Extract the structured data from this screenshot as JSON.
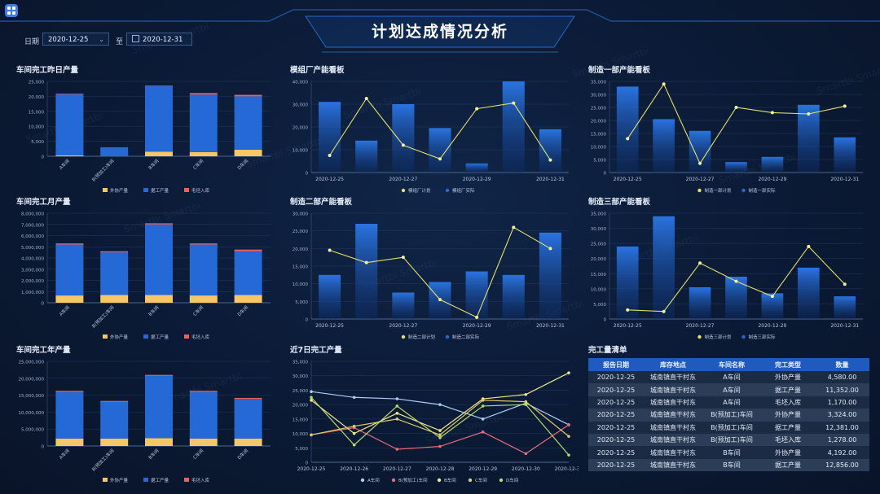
{
  "header": {
    "title": "计划达成情况分析",
    "date_label": "日期",
    "start_date": "2020-12-25",
    "to_label": "至",
    "end_date": "2020-12-31"
  },
  "watermark": "Smartbi Smartbi",
  "colors": {
    "blue": "#2469d6",
    "yellow": "#f6c667",
    "red": "#e8635a",
    "line_yellow": "#e4e06a",
    "table_header": "#1f5bbf"
  },
  "chart_data": [
    {
      "id": "daily",
      "type": "bar",
      "stacked": true,
      "title": "车间完工昨日产量",
      "categories": [
        "A车间",
        "B(预加工)车间",
        "B车间",
        "C车间",
        "D车间"
      ],
      "series": [
        {
          "name": "外协产量",
          "values": [
            300,
            0,
            1500,
            1400,
            2200
          ]
        },
        {
          "name": "据工产量",
          "values": [
            20400,
            3000,
            22000,
            19200,
            17800
          ]
        },
        {
          "name": "毛坯入库",
          "values": [
            200,
            0,
            100,
            500,
            500
          ]
        }
      ],
      "ylim": [
        0,
        25000
      ],
      "yticks": [
        "0",
        "5,000",
        "10,000",
        "15,000",
        "20,000",
        "25,000"
      ],
      "legend": "bottom"
    },
    {
      "id": "monthly",
      "type": "bar",
      "stacked": true,
      "title": "车间完工月产量",
      "categories": [
        "A车间",
        "B(预加工)车间",
        "B车间",
        "C车间",
        "D车间"
      ],
      "series": [
        {
          "name": "外协产量",
          "values": [
            650000,
            700000,
            700000,
            650000,
            700000
          ]
        },
        {
          "name": "据工产量",
          "values": [
            4550000,
            3800000,
            6300000,
            4550000,
            3900000
          ]
        },
        {
          "name": "毛坯入库",
          "values": [
            100000,
            100000,
            100000,
            100000,
            150000
          ]
        }
      ],
      "ylim": [
        0,
        8000000
      ],
      "yticks": [
        "0",
        "1,000,000",
        "2,000,000",
        "3,000,000",
        "4,000,000",
        "5,000,000",
        "6,000,000",
        "7,000,000",
        "8,000,000"
      ],
      "legend": "bottom"
    },
    {
      "id": "yearly",
      "type": "bar",
      "stacked": true,
      "title": "车间完工年产量",
      "categories": [
        "A车间",
        "B(预加工)车间",
        "B车间",
        "C车间",
        "D车间"
      ],
      "series": [
        {
          "name": "外协产量",
          "values": [
            2200000,
            2200000,
            2300000,
            2200000,
            2200000
          ]
        },
        {
          "name": "据工产量",
          "values": [
            13800000,
            10800000,
            18400000,
            13800000,
            11700000
          ]
        },
        {
          "name": "毛坯入库",
          "values": [
            300000,
            300000,
            300000,
            300000,
            300000
          ]
        }
      ],
      "ylim": [
        0,
        25000000
      ],
      "yticks": [
        "0",
        "5,000,000",
        "10,000,000",
        "15,000,000",
        "20,000,000",
        "25,000,000"
      ],
      "legend": "bottom"
    },
    {
      "id": "mold",
      "type": "bar+line",
      "title": "模组厂产能看板",
      "x": [
        "2020-12-25",
        "2020-12-26",
        "2020-12-27",
        "2020-12-28",
        "2020-12-29",
        "2020-12-30",
        "2020-12-31"
      ],
      "xticks": [
        "2020-12-25",
        "2020-12-27",
        "2020-12-29",
        "2020-12-31"
      ],
      "series": [
        {
          "name": "模组厂计划",
          "kind": "line",
          "values": [
            7500,
            32500,
            12000,
            6000,
            28000,
            30500,
            5500
          ]
        },
        {
          "name": "模组厂实际",
          "kind": "bar",
          "values": [
            31000,
            14000,
            30000,
            19500,
            4000,
            40000,
            19000
          ]
        }
      ],
      "ylim": [
        0,
        40000
      ],
      "yticks": [
        "0",
        "10,000",
        "20,000",
        "30,000",
        "40,000"
      ],
      "legend": "bottom"
    },
    {
      "id": "dept1",
      "type": "bar+line",
      "title": "制造一部产能看板",
      "x": [
        "2020-12-25",
        "2020-12-26",
        "2020-12-27",
        "2020-12-28",
        "2020-12-29",
        "2020-12-30",
        "2020-12-31"
      ],
      "xticks": [
        "2020-12-25",
        "2020-12-27",
        "2020-12-29",
        "2020-12-31"
      ],
      "series": [
        {
          "name": "制造一部计划",
          "kind": "line",
          "values": [
            13000,
            34000,
            3500,
            25000,
            23000,
            22500,
            25500
          ]
        },
        {
          "name": "制造一部实际",
          "kind": "bar",
          "values": [
            33000,
            20500,
            16000,
            4000,
            6000,
            26000,
            13500
          ]
        }
      ],
      "ylim": [
        0,
        35000
      ],
      "yticks": [
        "0",
        "5,000",
        "10,000",
        "15,000",
        "20,000",
        "25,000",
        "30,000",
        "35,000"
      ],
      "legend": "bottom"
    },
    {
      "id": "dept2",
      "type": "bar+line",
      "title": "制造二部产能看板",
      "x": [
        "2020-12-25",
        "2020-12-26",
        "2020-12-27",
        "2020-12-28",
        "2020-12-29",
        "2020-12-30",
        "2020-12-31"
      ],
      "xticks": [
        "2020-12-25",
        "2020-12-27",
        "2020-12-29",
        "2020-12-31"
      ],
      "series": [
        {
          "name": "制造二部计划",
          "kind": "line",
          "values": [
            19500,
            16000,
            17500,
            5500,
            500,
            26000,
            20000
          ]
        },
        {
          "name": "制造二部实际",
          "kind": "bar",
          "values": [
            12500,
            27000,
            7500,
            10500,
            13500,
            12500,
            24500
          ]
        }
      ],
      "ylim": [
        0,
        30000
      ],
      "yticks": [
        "0",
        "5,000",
        "10,000",
        "15,000",
        "20,000",
        "25,000",
        "30,000"
      ],
      "legend": "bottom"
    },
    {
      "id": "dept3",
      "type": "bar+line",
      "title": "制造三部产能看板",
      "x": [
        "2020-12-25",
        "2020-12-26",
        "2020-12-27",
        "2020-12-28",
        "2020-12-29",
        "2020-12-30",
        "2020-12-31"
      ],
      "xticks": [
        "2020-12-25",
        "2020-12-27",
        "2020-12-29",
        "2020-12-31"
      ],
      "series": [
        {
          "name": "制造三部计划",
          "kind": "line",
          "values": [
            3000,
            2500,
            18500,
            12500,
            7500,
            24000,
            11500
          ]
        },
        {
          "name": "制造三部实际",
          "kind": "bar",
          "values": [
            24000,
            34000,
            10500,
            14000,
            8500,
            17000,
            7500
          ]
        }
      ],
      "ylim": [
        0,
        35000
      ],
      "yticks": [
        "0",
        "5,000",
        "10,000",
        "15,000",
        "20,000",
        "25,000",
        "30,000",
        "35,000"
      ],
      "legend": "bottom"
    },
    {
      "id": "week",
      "type": "line",
      "title": "近7日完工产量",
      "x": [
        "2020-12-25",
        "2020-12-26",
        "2020-12-27",
        "2020-12-28",
        "2020-12-29",
        "2020-12-30",
        "2020-12-31"
      ],
      "xticks": [
        "2020-12-25",
        "2020-12-26",
        "2020-12-27",
        "2020-12-28",
        "2020-12-29",
        "2020-12-30",
        "2020-12-31"
      ],
      "series": [
        {
          "name": "A车间",
          "color": "#a9cdf5",
          "values": [
            24500,
            22500,
            22000,
            20000,
            15000,
            20500,
            13000
          ]
        },
        {
          "name": "B(预加工)车间",
          "color": "#e56b78",
          "values": [
            9500,
            12000,
            4500,
            5500,
            10500,
            3000,
            13000
          ]
        },
        {
          "name": "B车间",
          "color": "#f0e68c",
          "values": [
            21500,
            10000,
            17000,
            11000,
            22000,
            23500,
            31000
          ]
        },
        {
          "name": "C车间",
          "color": "#e2c96b",
          "values": [
            9500,
            12500,
            15000,
            9500,
            21500,
            21000,
            9000
          ]
        },
        {
          "name": "D车间",
          "color": "#b8d86a",
          "values": [
            22500,
            6000,
            19500,
            8500,
            19500,
            20000,
            2500
          ]
        }
      ],
      "ylim": [
        0,
        35000
      ],
      "yticks": [
        "0",
        "5,000",
        "10,000",
        "15,000",
        "20,000",
        "25,000",
        "30,000",
        "35,000"
      ],
      "legend": "bottom"
    }
  ],
  "table": {
    "title": "完工量清单",
    "headers": [
      "报告日期",
      "库存地点",
      "车间名称",
      "完工类型",
      "数量"
    ],
    "rows": [
      [
        "2020-12-25",
        "城南镇直干村东",
        "A车间",
        "外协产量",
        "4,580.00"
      ],
      [
        "2020-12-25",
        "城南镇直干村东",
        "A车间",
        "据工产量",
        "11,352.00"
      ],
      [
        "2020-12-25",
        "城南镇直干村东",
        "A车间",
        "毛坯入库",
        "1,170.00"
      ],
      [
        "2020-12-25",
        "城南镇直干村东",
        "B(预加工)车间",
        "外协产量",
        "3,324.00"
      ],
      [
        "2020-12-25",
        "城南镇直干村东",
        "B(预加工)车间",
        "据工产量",
        "12,381.00"
      ],
      [
        "2020-12-25",
        "城南镇直干村东",
        "B(预加工)车间",
        "毛坯入库",
        "1,278.00"
      ],
      [
        "2020-12-25",
        "城南镇直干村东",
        "B车间",
        "外协产量",
        "4,192.00"
      ],
      [
        "2020-12-25",
        "城南镇直干村东",
        "B车间",
        "据工产量",
        "12,856.00"
      ]
    ]
  }
}
